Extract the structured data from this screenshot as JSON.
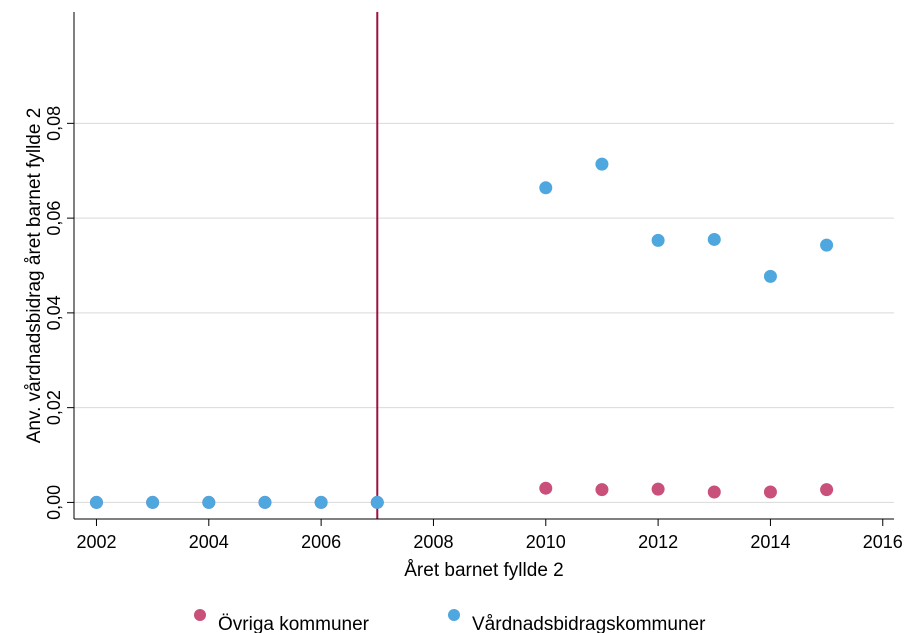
{
  "chart_data": {
    "type": "scatter",
    "title": "",
    "xlabel": "Året barnet fyllde 2",
    "ylabel": "Anv. vårdnadsbidrag året barnet fyllde 2",
    "xlim": [
      2001.6,
      2016.2
    ],
    "ylim": [
      -0.0035,
      0.1035
    ],
    "x_ticks": [
      2002,
      2004,
      2006,
      2008,
      2010,
      2012,
      2014,
      2016
    ],
    "x_tick_labels": [
      "2002",
      "2004",
      "2006",
      "2008",
      "2010",
      "2012",
      "2014",
      "2016"
    ],
    "y_ticks": [
      0,
      0.02,
      0.04,
      0.06,
      0.08
    ],
    "y_tick_labels": [
      "0,00",
      "0,02",
      "0,04",
      "0,06",
      "0,08"
    ],
    "grid": true,
    "reference_line": {
      "x": 2007,
      "color": "#a0103c"
    },
    "legend_position": "bottom",
    "series": [
      {
        "name": "Övriga kommuner",
        "color": "#c8507a",
        "x": [
          2002,
          2003,
          2004,
          2005,
          2006,
          2007,
          2010,
          2011,
          2012,
          2013,
          2014,
          2015
        ],
        "y": [
          0,
          0,
          0,
          0,
          0,
          0,
          0.003,
          0.0027,
          0.0028,
          0.0022,
          0.0022,
          0.0027
        ]
      },
      {
        "name": "Vårdnadsbidragskommuner",
        "color": "#4ea7de",
        "x": [
          2002,
          2003,
          2004,
          2005,
          2006,
          2007,
          2010,
          2011,
          2012,
          2013,
          2014,
          2015
        ],
        "y": [
          0,
          0,
          0,
          0,
          0,
          0,
          0.0664,
          0.0714,
          0.0553,
          0.0555,
          0.0477,
          0.0543
        ]
      }
    ]
  }
}
